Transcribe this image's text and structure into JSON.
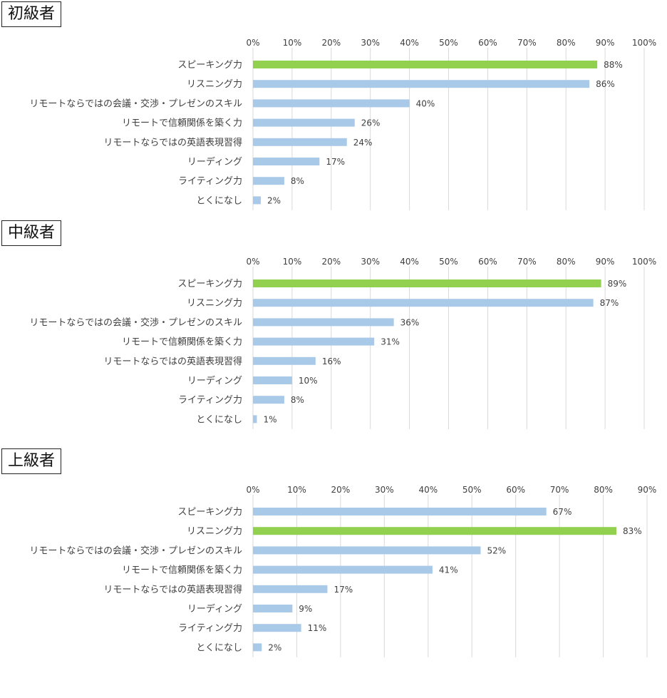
{
  "colors": {
    "highlight": "#92d050",
    "bar": "#a9c9e8",
    "grid": "#d9d9d9"
  },
  "chart_data": [
    {
      "type": "bar",
      "orientation": "horizontal",
      "title": "初級者",
      "categories": [
        "スピーキング力",
        "リスニング力",
        "リモートならではの会議・交渉・プレゼンのスキル",
        "リモートで信頼関係を築く力",
        "リモートならではの英語表現習得",
        "リーディング",
        "ライティング力",
        "とくになし"
      ],
      "values": [
        88,
        86,
        40,
        26,
        24,
        17,
        8,
        2
      ],
      "value_labels": [
        "88%",
        "86%",
        "40%",
        "26%",
        "24%",
        "17%",
        "8%",
        "2%"
      ],
      "highlight_index": 0,
      "ticks": [
        "0%",
        "10%",
        "20%",
        "30%",
        "40%",
        "50%",
        "60%",
        "70%",
        "80%",
        "90%",
        "100%"
      ],
      "xlim": [
        0,
        100
      ],
      "grid": true,
      "axis_position": "top"
    },
    {
      "type": "bar",
      "orientation": "horizontal",
      "title": "中級者",
      "categories": [
        "スピーキング力",
        "リスニング力",
        "リモートならではの会議・交渉・プレゼンのスキル",
        "リモートで信頼関係を築く力",
        "リモートならではの英語表現習得",
        "リーディング",
        "ライティング力",
        "とくになし"
      ],
      "values": [
        89,
        87,
        36,
        31,
        16,
        10,
        8,
        1
      ],
      "value_labels": [
        "89%",
        "87%",
        "36%",
        "31%",
        "16%",
        "10%",
        "8%",
        "1%"
      ],
      "highlight_index": 0,
      "ticks": [
        "0%",
        "10%",
        "20%",
        "30%",
        "40%",
        "50%",
        "60%",
        "70%",
        "80%",
        "90%",
        "100%"
      ],
      "xlim": [
        0,
        100
      ],
      "grid": true,
      "axis_position": "top"
    },
    {
      "type": "bar",
      "orientation": "horizontal",
      "title": "上級者",
      "categories": [
        "スピーキング力",
        "リスニング力",
        "リモートならではの会議・交渉・プレゼンのスキル",
        "リモートで信頼関係を築く力",
        "リモートならではの英語表現習得",
        "リーディング",
        "ライティング力",
        "とくになし"
      ],
      "values": [
        67,
        83,
        52,
        41,
        17,
        9,
        11,
        2
      ],
      "value_labels": [
        "67%",
        "83%",
        "52%",
        "41%",
        "17%",
        "9%",
        "11%",
        "2%"
      ],
      "highlight_index": 1,
      "ticks": [
        "0%",
        "10%",
        "20%",
        "30%",
        "40%",
        "50%",
        "60%",
        "70%",
        "80%",
        "90%"
      ],
      "xlim": [
        0,
        90
      ],
      "grid": true,
      "axis_position": "top"
    }
  ]
}
